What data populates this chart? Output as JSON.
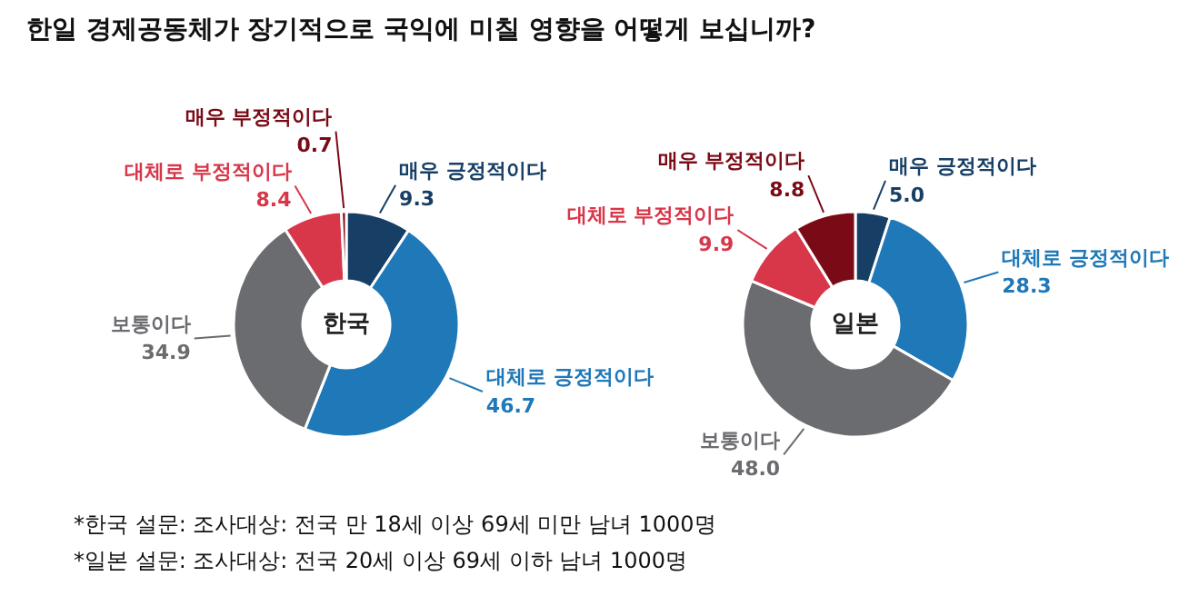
{
  "chart_data": [
    {
      "type": "donut",
      "title": "한일 경제공동체가 장기적으로 국익에 미칠 영향을 어떻게 보십니까?",
      "subtitle": "한국",
      "categories": [
        "매우 긍정적이다",
        "대체로 긍정적이다",
        "보통이다",
        "대체로 부정적이다",
        "매우 부정적이다"
      ],
      "values": [
        9.3,
        46.7,
        34.9,
        8.4,
        0.7
      ],
      "value_labels": [
        "9.3",
        "46.7",
        "34.9",
        "8.4",
        "0.7"
      ],
      "colors": [
        "#173f66",
        "#1f78b8",
        "#6b6c70",
        "#d8374a",
        "#7a0b16"
      ],
      "annotations": [
        "*한국 설문: 조사대상: 전국 만 18세 이상 69세 미만 남녀 1000명",
        "*일본 설문: 조사대상: 전국 20세 이상 69세 이하 남녀 1000명"
      ]
    },
    {
      "type": "donut",
      "subtitle": "일본",
      "categories": [
        "매우 긍정적이다",
        "대체로 긍정적이다",
        "보통이다",
        "대체로 부정적이다",
        "매우 부정적이다"
      ],
      "values": [
        5.0,
        28.3,
        48.0,
        9.9,
        8.8
      ],
      "value_labels": [
        "5.0",
        "28.3",
        "48.0",
        "9.9",
        "8.8"
      ],
      "colors": [
        "#173f66",
        "#1f78b8",
        "#6b6c70",
        "#d8374a",
        "#7a0b16"
      ]
    }
  ]
}
